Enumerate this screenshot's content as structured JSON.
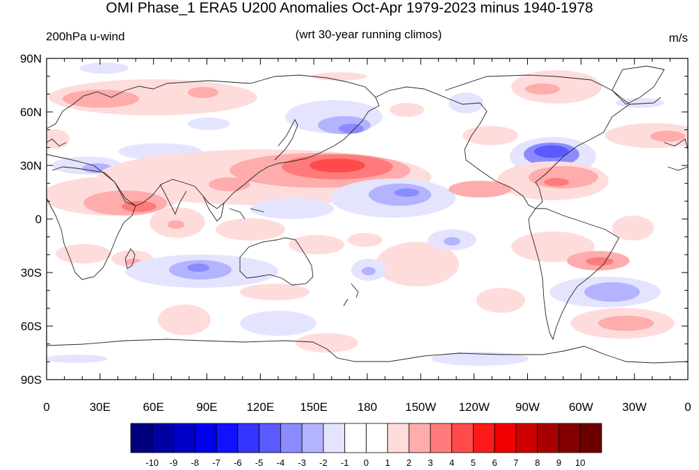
{
  "title": "OMI Phase_1 ERA5 U200 Anomalies Oct-Apr 1979-2023 minus 1940-1978",
  "left_subtitle": "200hPa u-wind",
  "center_subtitle": "(wrt 30-year running climos)",
  "units": "m/s",
  "lat_ticks": [
    "90N",
    "60N",
    "30N",
    "0",
    "30S",
    "60S",
    "90S"
  ],
  "lon_ticks": [
    "0",
    "30E",
    "60E",
    "90E",
    "120E",
    "150E",
    "180",
    "150W",
    "120W",
    "90W",
    "60W",
    "30W",
    "0"
  ],
  "colorbar": {
    "levels": [
      "-10",
      "-9",
      "-8",
      "-7",
      "-6",
      "-5",
      "-4",
      "-3",
      "-2",
      "-1",
      "0",
      "1",
      "2",
      "3",
      "4",
      "5",
      "6",
      "7",
      "8",
      "9",
      "10"
    ],
    "colors": [
      "#00007f",
      "#0000a3",
      "#0000c8",
      "#0000ec",
      "#1111ff",
      "#3535ff",
      "#5a5aff",
      "#8b8bff",
      "#b3b3ff",
      "#e4e4ff",
      "#ffffff",
      "#ffffff",
      "#ffdcdc",
      "#ffacac",
      "#ff7b7b",
      "#ff4b4b",
      "#ff1a1a",
      "#f00000",
      "#cc0000",
      "#a80000",
      "#840000",
      "#6a0000"
    ]
  }
}
